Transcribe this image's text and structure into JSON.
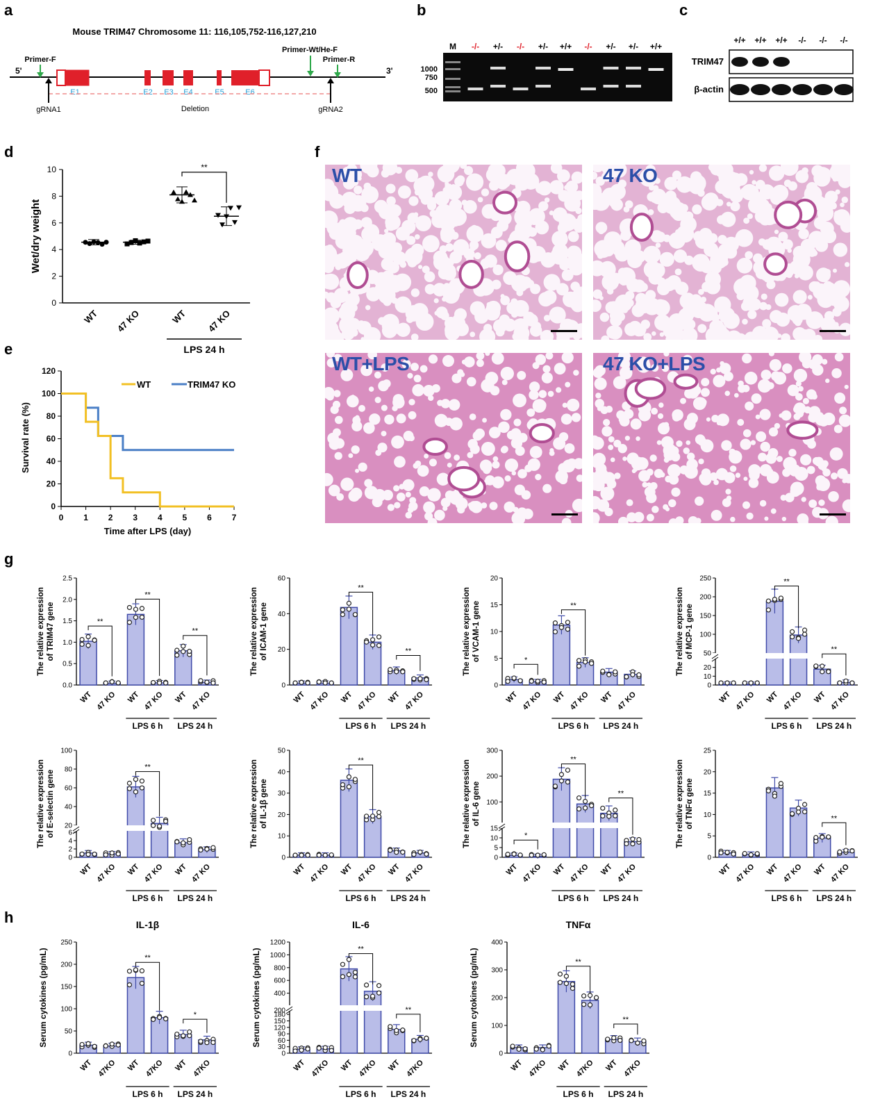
{
  "panel_labels": {
    "a": "a",
    "b": "b",
    "c": "c",
    "d": "d",
    "e": "e",
    "f": "f",
    "g": "g",
    "h": "h"
  },
  "panel_a": {
    "title": "Mouse TRIM47 Chromosome 11: 116,105,752-116,127,210",
    "five": "5'",
    "three": "3'",
    "primer_f": "Primer-F",
    "primer_wt": "Primer-Wt/He-F",
    "primer_r": "Primer-R",
    "exons": [
      "E1",
      "E2",
      "E3",
      "E4",
      "E5",
      "E6"
    ],
    "grna1": "gRNA1",
    "grna2": "gRNA2",
    "deletion": "Deletion",
    "colors": {
      "exon": "#e0202a",
      "exon_label": "#2aa0d8",
      "primer": "#2ea84a",
      "deletion": "#ef8b8b"
    }
  },
  "panel_b": {
    "lanes": [
      "M",
      "-/-",
      "+/-",
      "-/-",
      "+/-",
      "+/+",
      "-/-",
      "+/-",
      "+/-",
      "+/+"
    ],
    "lane_colors": [
      "#000",
      "#e0202a",
      "#000",
      "#e0202a",
      "#000",
      "#000",
      "#e0202a",
      "#000",
      "#000",
      "#000"
    ],
    "size_markers": [
      "1000",
      "750",
      "500"
    ]
  },
  "panel_c": {
    "lanes": [
      "+/+",
      "+/+",
      "+/+",
      "-/-",
      "-/-",
      "-/-"
    ],
    "rows": [
      "TRIM47",
      "β-actin"
    ]
  },
  "panel_d": {
    "ylabel": "Wet/dry weight",
    "yticks": [
      "0",
      "2",
      "4",
      "6",
      "8",
      "10"
    ],
    "categories": [
      "WT",
      "47 KO",
      "WT",
      "47 KO"
    ],
    "group_label": "LPS 24 h",
    "sig": "**"
  },
  "panel_e": {
    "ylabel": "Survival rate (%)",
    "xlabel": "Time after LPS (day)",
    "yticks": [
      "0",
      "20",
      "40",
      "60",
      "80",
      "100",
      "120"
    ],
    "xticks": [
      "0",
      "1",
      "2",
      "3",
      "4",
      "5",
      "6",
      "7"
    ],
    "legend": [
      {
        "name": "WT",
        "color": "#f2c024"
      },
      {
        "name": "TRIM47 KO",
        "color": "#4a7fc6"
      }
    ]
  },
  "panel_f": {
    "labels": [
      "WT",
      "47 KO",
      "WT+LPS",
      "47 KO+LPS"
    ]
  },
  "panel_g": {
    "xcats": [
      "WT",
      "47 KO",
      "WT",
      "47 KO",
      "WT",
      "47 KO"
    ],
    "groups": [
      "LPS 6 h",
      "LPS 24 h"
    ],
    "charts": [
      {
        "ylabel1": "The relative expression",
        "ylabel2": "of TRIM47 gene",
        "yticks": [
          "0.0",
          "0.5",
          "1.0",
          "1.5",
          "2.0",
          "2.5"
        ]
      },
      {
        "ylabel1": "The relative expression",
        "ylabel2": "of ICAM-1 gene",
        "yticks": [
          "0",
          "20",
          "40",
          "60"
        ]
      },
      {
        "ylabel1": "The relative expression",
        "ylabel2": "of VCAM-1 gene",
        "yticks": [
          "0",
          "5",
          "10",
          "15",
          "20"
        ]
      },
      {
        "ylabel1": "The relative expression",
        "ylabel2": "of MCP-1 gene",
        "yticks": [
          "0",
          "10",
          "20",
          "50",
          "100",
          "150",
          "200",
          "250"
        ]
      },
      {
        "ylabel1": "The relative expression",
        "ylabel2": "of E-selectin gene",
        "yticks": [
          "0",
          "2",
          "4",
          "6",
          "20",
          "40",
          "60",
          "80",
          "100"
        ]
      },
      {
        "ylabel1": "The relative expression",
        "ylabel2": "of IL-1β gene",
        "yticks": [
          "0",
          "10",
          "20",
          "30",
          "40",
          "50"
        ]
      },
      {
        "ylabel1": "The relative expression",
        "ylabel2": "of IL-6 gene",
        "yticks": [
          "0",
          "5",
          "10",
          "15",
          "100",
          "200",
          "300"
        ]
      },
      {
        "ylabel1": "The relative expression",
        "ylabel2": "of TNFα gene",
        "yticks": [
          "0",
          "5",
          "10",
          "15",
          "20",
          "25"
        ]
      }
    ]
  },
  "panel_h": {
    "xcats": [
      "WT",
      "47KO",
      "WT",
      "47KO",
      "WT",
      "47KO"
    ],
    "groups": [
      "LPS 6 h",
      "LPS 24 h"
    ],
    "ylabel": "Serum cytokines (pg/mL)",
    "charts": [
      {
        "title": "IL-1β",
        "yticks": [
          "0",
          "50",
          "100",
          "150",
          "200",
          "250"
        ]
      },
      {
        "title": "IL-6",
        "yticks": [
          "0",
          "30",
          "60",
          "90",
          "120",
          "150",
          "180",
          "200",
          "400",
          "600",
          "800",
          "1000",
          "1200"
        ]
      },
      {
        "title": "TNFα",
        "yticks": [
          "0",
          "100",
          "200",
          "300",
          "400"
        ]
      }
    ]
  },
  "chart_data": [
    {
      "type": "scatter",
      "panel": "d",
      "categories": [
        "WT",
        "47 KO",
        "WT LPS 24 h",
        "47 KO LPS 24 h"
      ],
      "values": [
        4.55,
        4.55,
        8.1,
        6.5
      ],
      "sd": [
        0.2,
        0.15,
        0.6,
        0.7
      ],
      "ylabel": "Wet/dry weight",
      "ylim": [
        0,
        10
      ]
    },
    {
      "type": "line",
      "panel": "e",
      "xlabel": "Time after LPS (day)",
      "ylabel": "Survival rate (%)",
      "xlim": [
        0,
        7
      ],
      "ylim": [
        0,
        120
      ],
      "series": [
        {
          "name": "WT",
          "x": [
            0,
            1,
            1.5,
            2,
            2.5,
            4,
            7
          ],
          "y": [
            100,
            75,
            62.5,
            25,
            12.5,
            0,
            0
          ]
        },
        {
          "name": "TRIM47 KO",
          "x": [
            0,
            1,
            1.5,
            2.5,
            7
          ],
          "y": [
            100,
            87.5,
            62.5,
            50,
            50
          ]
        }
      ]
    },
    {
      "type": "bar",
      "panel": "g1",
      "categories": [
        "WT",
        "47 KO",
        "WT LPS 6 h",
        "47 KO LPS 6 h",
        "WT LPS 24 h",
        "47 KO LPS 24 h"
      ],
      "values": [
        1.02,
        0.04,
        1.65,
        0.05,
        0.8,
        0.06
      ],
      "ylim": [
        0,
        2.5
      ]
    },
    {
      "type": "bar",
      "panel": "g2",
      "categories": [
        "WT",
        "47 KO",
        "WT LPS 6 h",
        "47 KO LPS 6 h",
        "WT LPS 24 h",
        "47 KO LPS 24 h"
      ],
      "values": [
        1,
        1,
        43.5,
        24,
        8,
        4
      ],
      "ylim": [
        0,
        60
      ]
    },
    {
      "type": "bar",
      "panel": "g3",
      "categories": [
        "WT",
        "47 KO",
        "WT LPS 6 h",
        "47 KO LPS 6 h",
        "WT LPS 24 h",
        "47 KO LPS 24 h"
      ],
      "values": [
        1,
        0.6,
        11.2,
        4.2,
        2.4,
        2
      ],
      "ylim": [
        0,
        20
      ]
    },
    {
      "type": "bar",
      "panel": "g4",
      "categories": [
        "WT",
        "47 KO",
        "WT LPS 6 h",
        "47 KO LPS 6 h",
        "WT LPS 24 h",
        "47 KO LPS 24 h"
      ],
      "values": [
        1,
        1,
        188,
        98,
        18,
        3
      ],
      "ylim": [
        0,
        250
      ]
    },
    {
      "type": "bar",
      "panel": "g5",
      "categories": [
        "WT",
        "47 KO",
        "WT LPS 6 h",
        "47 KO LPS 6 h",
        "WT LPS 24 h",
        "47 KO LPS 24 h"
      ],
      "values": [
        1,
        0.8,
        61,
        22,
        3.5,
        1.8
      ],
      "ylim": [
        0,
        100
      ]
    },
    {
      "type": "bar",
      "panel": "g6",
      "categories": [
        "WT",
        "47 KO",
        "WT LPS 6 h",
        "47 KO LPS 6 h",
        "WT LPS 24 h",
        "47 KO LPS 24 h"
      ],
      "values": [
        1,
        1,
        36,
        19,
        3,
        2
      ],
      "ylim": [
        0,
        50
      ]
    },
    {
      "type": "bar",
      "panel": "g7",
      "categories": [
        "WT",
        "47 KO",
        "WT LPS 6 h",
        "47 KO LPS 6 h",
        "WT LPS 24 h",
        "47 KO LPS 24 h"
      ],
      "values": [
        1,
        0.5,
        188,
        92,
        56,
        8
      ],
      "ylim": [
        0,
        300
      ]
    },
    {
      "type": "bar",
      "panel": "g8",
      "categories": [
        "WT",
        "47 KO",
        "WT LPS 6 h",
        "47 KO LPS 6 h",
        "WT LPS 24 h",
        "47 KO LPS 24 h"
      ],
      "values": [
        1,
        0.7,
        16.2,
        11.5,
        4.5,
        1.2
      ],
      "ylim": [
        0,
        25
      ]
    },
    {
      "type": "bar",
      "panel": "h1",
      "title": "IL-1β",
      "categories": [
        "WT",
        "47KO",
        "WT LPS 6 h",
        "47KO LPS 6 h",
        "WT LPS 24 h",
        "47KO LPS 24 h"
      ],
      "values": [
        18,
        16,
        170,
        80,
        42,
        30
      ],
      "ylim": [
        0,
        250
      ]
    },
    {
      "type": "bar",
      "panel": "h2",
      "title": "IL-6",
      "categories": [
        "WT",
        "47KO",
        "WT LPS 6 h",
        "47KO LPS 6 h",
        "WT LPS 24 h",
        "47KO LPS 24 h"
      ],
      "values": [
        18,
        20,
        780,
        430,
        110,
        65
      ],
      "ylim": [
        0,
        1200
      ]
    },
    {
      "type": "bar",
      "panel": "h3",
      "title": "TNFα",
      "categories": [
        "WT",
        "47KO",
        "WT LPS 6 h",
        "47KO LPS 6 h",
        "WT LPS 24 h",
        "47KO LPS 24 h"
      ],
      "values": [
        20,
        20,
        258,
        190,
        50,
        42
      ],
      "ylim": [
        0,
        400
      ]
    }
  ]
}
